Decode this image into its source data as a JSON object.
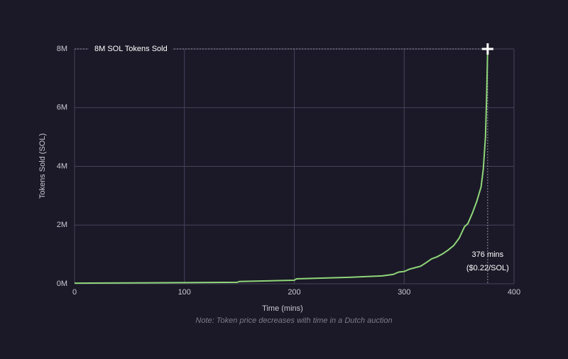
{
  "chart_data": {
    "type": "line",
    "x_label": "Time (mins)",
    "y_label": "Tokens Sold (SOL)",
    "note": "Note: Token price decreases with time in a Dutch auction",
    "x": [
      0,
      50,
      100,
      148,
      150,
      200,
      202,
      250,
      280,
      290,
      295,
      300,
      305,
      310,
      315,
      320,
      325,
      330,
      335,
      340,
      345,
      350,
      355,
      358,
      362,
      366,
      370,
      372,
      374,
      375,
      376
    ],
    "values": [
      20000,
      30000,
      40000,
      50000,
      80000,
      120000,
      170000,
      220000,
      270000,
      320000,
      400000,
      420000,
      500000,
      550000,
      600000,
      720000,
      850000,
      920000,
      1020000,
      1150000,
      1300000,
      1550000,
      1950000,
      2050000,
      2400000,
      2800000,
      3300000,
      3900000,
      5000000,
      6300000,
      8000000
    ],
    "color": "#8fd67a",
    "xlim": [
      0,
      400
    ],
    "xticks": [
      0,
      100,
      200,
      300,
      400
    ],
    "ylim": [
      0,
      8000000
    ],
    "yticks": [
      {
        "value": 0,
        "label": "0M"
      },
      {
        "value": 2000000,
        "label": "2M"
      },
      {
        "value": 4000000,
        "label": "4M"
      },
      {
        "value": 6000000,
        "label": "6M"
      },
      {
        "value": 8000000,
        "label": "8M"
      }
    ],
    "grid": true,
    "highlight": {
      "x": 376,
      "y": 8000000,
      "top_label": "8M SOL Tokens Sold",
      "label_line1": "376 mins",
      "label_line2": "($0.22/SOL)"
    }
  }
}
